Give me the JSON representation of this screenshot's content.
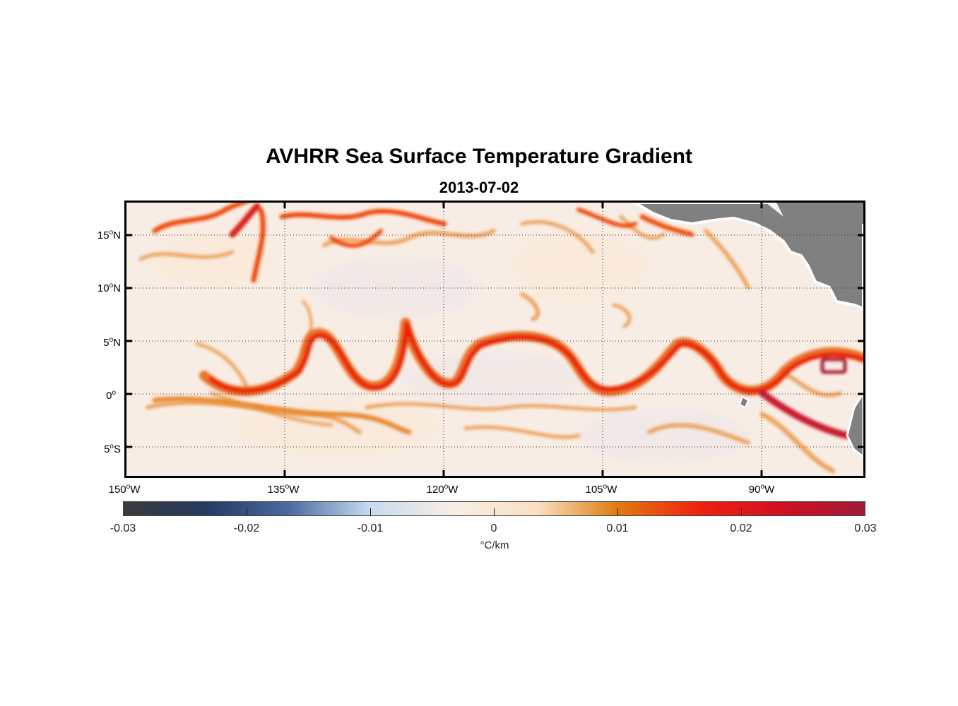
{
  "title": "AVHRR Sea Surface Temperature Gradient",
  "subtitle": "2013-07-02",
  "lat_labels": [
    {
      "deg": "15",
      "hem": "N"
    },
    {
      "deg": "10",
      "hem": "N"
    },
    {
      "deg": "5",
      "hem": "N"
    },
    {
      "deg": "0",
      "hem": ""
    },
    {
      "deg": "5",
      "hem": "S"
    }
  ],
  "lon_labels": [
    {
      "deg": "150",
      "hem": "W"
    },
    {
      "deg": "135",
      "hem": "W"
    },
    {
      "deg": "120",
      "hem": "W"
    },
    {
      "deg": "105",
      "hem": "W"
    },
    {
      "deg": "90",
      "hem": "W"
    }
  ],
  "colorbar": {
    "ticks": [
      "-0.03",
      "-0.02",
      "-0.01",
      "0",
      "0.01",
      "0.02",
      "0.03"
    ],
    "unit": "°C/km",
    "range": [
      -0.03,
      0.03
    ],
    "colors": [
      "#3a3a3a",
      "#243a62",
      "#4a6aa0",
      "#c7dcef",
      "#f7eee4",
      "#f9e2c4",
      "#e07a10",
      "#f02010",
      "#d01020",
      "#9e1a3a"
    ]
  },
  "land_color": "#808080"
}
